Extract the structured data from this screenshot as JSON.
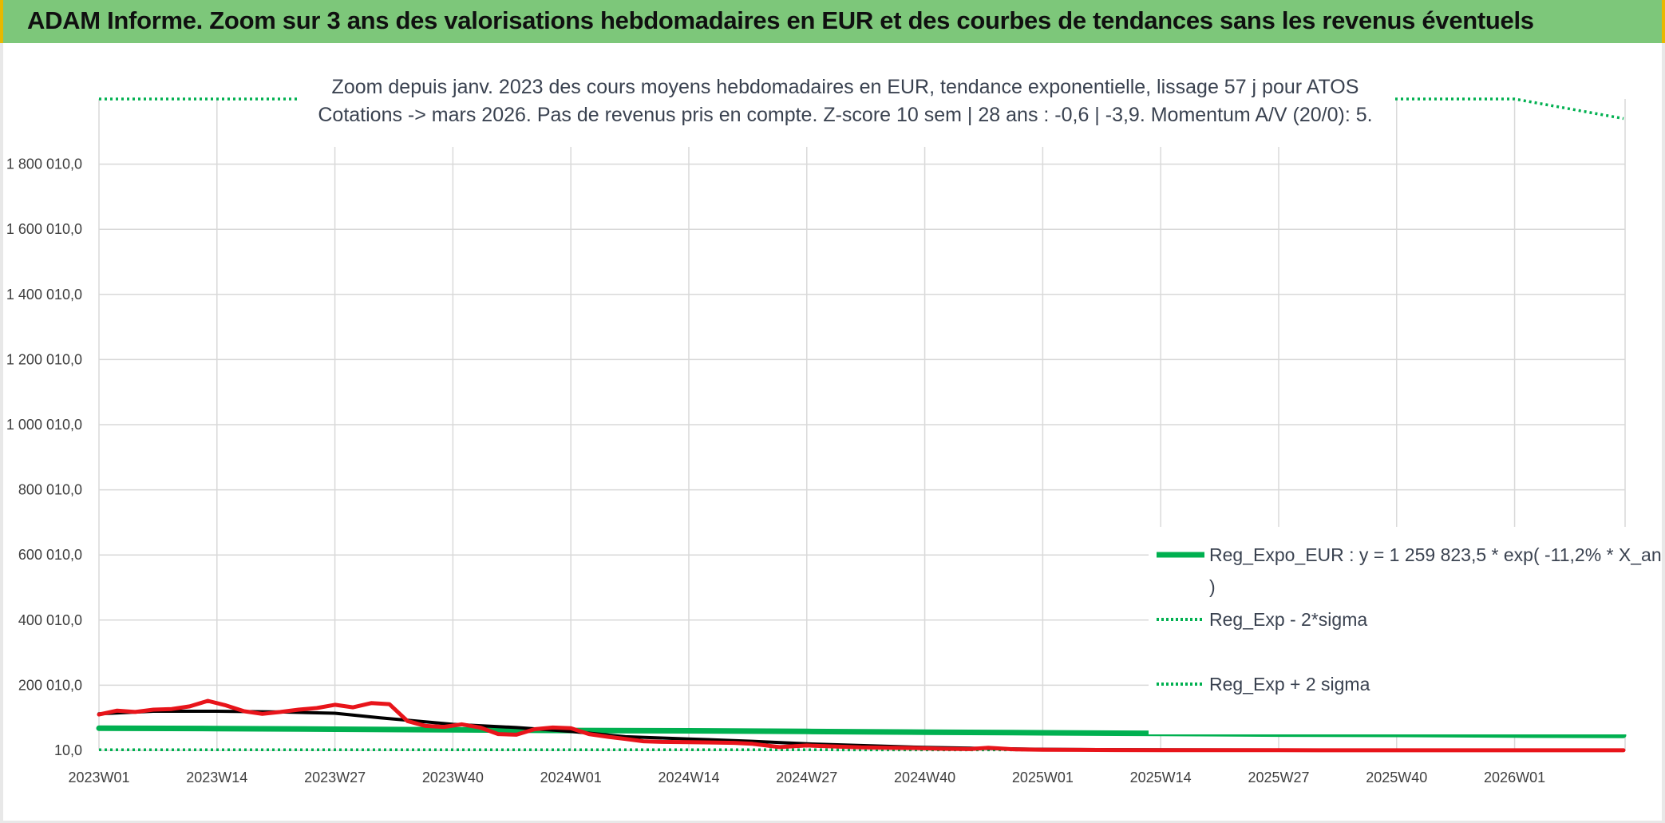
{
  "header": {
    "title": "ADAM Informe. Zoom sur 3 ans des valorisations hebdomadaires en EUR et des courbes de tendances sans les revenus éventuels"
  },
  "colors": {
    "header_bg": "#7dc77a",
    "trend_green": "#00b050",
    "price_red": "#e8141a",
    "smoothed_black": "#000000",
    "grid": "#d9d9d9"
  },
  "chart_data": {
    "type": "line",
    "title_line1": "Zoom depuis janv. 2023 des cours moyens hebdomadaires en EUR, tendance exponentielle, lissage 57 j pour ATOS",
    "title_line2": "Cotations -> mars 2026. Pas de revenus pris en compte. Z-score 10 sem | 28 ans : -0,6 | -3,9. Momentum A/V (20/0): 5.",
    "x_tick_labels": [
      "2023W01",
      "2023W14",
      "2023W27",
      "2023W40",
      "2024W01",
      "2024W14",
      "2024W27",
      "2024W40",
      "2025W01",
      "2025W14",
      "2025W27",
      "2025W40",
      "2026W01"
    ],
    "y_tick_labels": [
      "10,0",
      "200 010,0",
      "400 010,0",
      "600 010,0",
      "800 010,0",
      "1 000 010,0",
      "1 200 010,0",
      "1 400 010,0",
      "1 600 010,0",
      "1 800 010,0"
    ],
    "ylim": [
      10,
      2000010
    ],
    "x_unit": "week index since 2023W01",
    "grid": true,
    "legend_position": "right",
    "series": [
      {
        "name": "Reg_Expo_EUR : y = 1 259 823,5 * exp( -11,2% *  X_an )",
        "name_line1": "Reg_Expo_EUR : y = 1 259 823,5 * exp( -11,2% *  X_an",
        "name_line2": ")",
        "style": "solid",
        "color": "#00b050",
        "x": [
          0,
          13,
          26,
          39,
          52,
          65,
          78,
          91,
          104,
          117,
          130,
          143,
          156,
          168
        ],
        "y": [
          68000,
          67000,
          65000,
          63000,
          61000,
          60000,
          58000,
          56000,
          54000,
          52000,
          50000,
          49000,
          47000,
          46000
        ]
      },
      {
        "name": "Reg_Exp - 2*sigma",
        "style": "dotted",
        "color": "#00b050",
        "x": [
          0,
          26,
          52,
          78,
          104,
          130,
          156,
          168
        ],
        "y": [
          2000,
          1900,
          1800,
          1700,
          1600,
          1500,
          1400,
          1300
        ]
      },
      {
        "name": "Reg_Exp + 2 sigma",
        "style": "dotted",
        "color": "#00b050",
        "x": [
          0,
          26,
          52,
          78,
          104,
          130,
          156,
          168
        ],
        "y": [
          2000010,
          2000010,
          2000010,
          2000010,
          2000010,
          2000010,
          2000010,
          1940000
        ]
      },
      {
        "name": "",
        "style": "solid",
        "color": "#000000",
        "x": [
          0,
          6,
          13,
          20,
          26,
          31,
          39,
          46,
          52,
          58,
          65,
          72,
          78,
          85,
          91,
          98,
          104,
          110,
          117,
          130,
          143,
          156,
          168
        ],
        "y": [
          112000,
          120000,
          120000,
          118000,
          114000,
          100000,
          80000,
          70000,
          58000,
          42000,
          35000,
          28000,
          20000,
          14000,
          9000,
          6000,
          3500,
          2500,
          1800,
          1200,
          900,
          700,
          600
        ]
      },
      {
        "name": "",
        "style": "solid",
        "color": "#e8141a",
        "x": [
          0,
          2,
          4,
          6,
          8,
          10,
          12,
          14,
          16,
          18,
          20,
          22,
          24,
          26,
          28,
          30,
          32,
          34,
          36,
          38,
          40,
          42,
          44,
          46,
          48,
          50,
          52,
          54,
          56,
          58,
          60,
          62,
          65,
          68,
          70,
          72,
          75,
          78,
          81,
          84,
          87,
          90,
          93,
          96,
          98,
          101,
          104,
          108,
          112,
          117,
          130,
          143,
          156,
          168
        ],
        "y": [
          110000,
          122000,
          118000,
          125000,
          127000,
          135000,
          152000,
          138000,
          120000,
          112000,
          118000,
          125000,
          130000,
          140000,
          132000,
          145000,
          142000,
          90000,
          75000,
          72000,
          80000,
          70000,
          50000,
          48000,
          65000,
          70000,
          68000,
          50000,
          42000,
          35000,
          28000,
          26000,
          25000,
          24000,
          23000,
          20000,
          10000,
          15000,
          12000,
          9000,
          8000,
          7000,
          5000,
          4000,
          8000,
          3000,
          2000,
          1500,
          1000,
          600,
          400,
          300,
          200,
          150
        ]
      }
    ]
  }
}
